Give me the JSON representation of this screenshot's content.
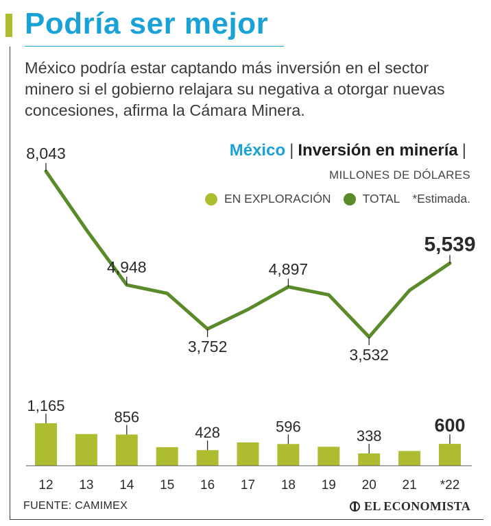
{
  "header": {
    "title": "Podría ser mejor",
    "subtitle": "México podría estar captando más inversión en el sector minero si el gobierno relajara su negativa a otorgar nuevas concesiones, afirma la Cámara Minera."
  },
  "chart_heading": {
    "country": "México",
    "separator": "|",
    "title": "Inversión en minería",
    "trailing_separator": "|",
    "units": "MILLONES DE DÓLARES"
  },
  "legend": {
    "exploration_label": "EN EXPLORACIÓN",
    "total_label": "TOTAL",
    "note": "*Estimada."
  },
  "colors": {
    "title_blue": "#1aa2d6",
    "exploration": "#aebd2f",
    "total": "#5a8a2a"
  },
  "chart_data": [
    {
      "type": "line",
      "series_name": "TOTAL",
      "x": [
        "12",
        "13",
        "14",
        "15",
        "16",
        "17",
        "18",
        "19",
        "20",
        "21",
        "*22"
      ],
      "values": [
        8043,
        6450,
        4948,
        4720,
        3752,
        4280,
        4897,
        4680,
        3532,
        4800,
        5539
      ],
      "labels": [
        {
          "index": 0,
          "text": "8,043",
          "position": "above"
        },
        {
          "index": 2,
          "text": "4,948",
          "position": "above"
        },
        {
          "index": 4,
          "text": "3,752",
          "position": "below"
        },
        {
          "index": 6,
          "text": "4,897",
          "position": "above"
        },
        {
          "index": 8,
          "text": "3,532",
          "position": "below"
        },
        {
          "index": 10,
          "text": "5,539",
          "position": "above",
          "emphasis": true
        }
      ],
      "ylim": [
        3000,
        8500
      ]
    },
    {
      "type": "bar",
      "series_name": "EN EXPLORACIÓN",
      "categories": [
        "12",
        "13",
        "14",
        "15",
        "16",
        "17",
        "18",
        "19",
        "20",
        "21",
        "*22"
      ],
      "values": [
        1165,
        870,
        856,
        510,
        428,
        640,
        596,
        520,
        338,
        405,
        600
      ],
      "labels": [
        {
          "index": 0,
          "text": "1,165"
        },
        {
          "index": 2,
          "text": "856"
        },
        {
          "index": 4,
          "text": "428"
        },
        {
          "index": 6,
          "text": "596"
        },
        {
          "index": 8,
          "text": "338"
        },
        {
          "index": 10,
          "text": "600",
          "emphasis": true
        }
      ],
      "ylim": [
        0,
        1300
      ]
    }
  ],
  "footer": {
    "source": "FUENTE: CAMIMEX",
    "brand": "EL ECONOMISTA"
  }
}
